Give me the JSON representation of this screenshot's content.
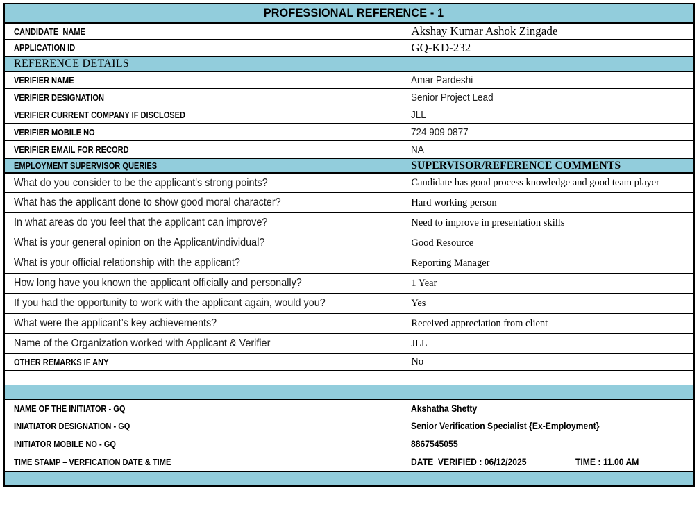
{
  "theme": {
    "accent": "#92CDDC",
    "border": "#000000"
  },
  "title": "PROFESSIONAL REFERENCE - 1",
  "candidate": {
    "name_label": "CANDIDATE  NAME",
    "name_value": "Akshay Kumar Ashok Zingade",
    "application_id_label": "APPLICATION ID",
    "application_id_value": "GQ-KD-232"
  },
  "reference_details": {
    "section_title": "REFERENCE DETAILS",
    "fields": [
      {
        "label": "VERIFIER NAME",
        "value": "Amar Pardeshi"
      },
      {
        "label": "VERIFIER DESIGNATION",
        "value": "Senior Project Lead"
      },
      {
        "label": "VERIFIER CURRENT COMPANY IF DISCLOSED",
        "value": "JLL"
      },
      {
        "label": "VERIFIER MOBILE NO",
        "value": "724 909 0877"
      },
      {
        "label": "VERIFIER EMAIL FOR RECORD",
        "value": "NA"
      }
    ]
  },
  "queries": {
    "header_left": "EMPLOYMENT SUPERVISOR QUERIES",
    "header_right": "SUPERVISOR/REFERENCE COMMENTS",
    "qa": [
      {
        "question": "What do you consider to be the applicant's strong points?",
        "answer": "Candidate has good process knowledge and good team player"
      },
      {
        "question": "What has the applicant done to show good moral character?",
        "answer": "Hard working person"
      },
      {
        "question": "In what areas do you feel that the applicant can improve?",
        "answer": "Need to improve in presentation skills"
      },
      {
        "question": "What is your general opinion on the Applicant/individual?",
        "answer": "Good Resource"
      },
      {
        "question": "What is your official relationship with the applicant?",
        "answer": "Reporting Manager"
      },
      {
        "question": "How long have you known the applicant officially and personally?",
        "answer": "1 Year"
      },
      {
        "question": "If you had the opportunity to work with the applicant again, would you?",
        "answer": "Yes"
      },
      {
        "question": "What were the applicant’s key achievements?",
        "answer": "Received appreciation from client"
      },
      {
        "question": "Name of the Organization worked with Applicant & Verifier",
        "answer": "JLL"
      }
    ],
    "remarks_label": "OTHER REMARKS IF ANY",
    "remarks_value": "No"
  },
  "initiator": {
    "fields": [
      {
        "label": "NAME OF THE INITIATOR - GQ",
        "value": "Akshatha Shetty"
      },
      {
        "label": "INIATIATOR DESIGNATION - GQ",
        "value": "Senior Verification Specialist {Ex-Employment}"
      },
      {
        "label": "INITIATOR MOBILE NO - GQ",
        "value": "8867545055"
      }
    ],
    "timestamp_label": "TIME STAMP – VERFICATION DATE & TIME",
    "timestamp_date": "DATE  VERIFIED : 06/12/2025",
    "timestamp_time": "TIME : 11.00 AM"
  }
}
